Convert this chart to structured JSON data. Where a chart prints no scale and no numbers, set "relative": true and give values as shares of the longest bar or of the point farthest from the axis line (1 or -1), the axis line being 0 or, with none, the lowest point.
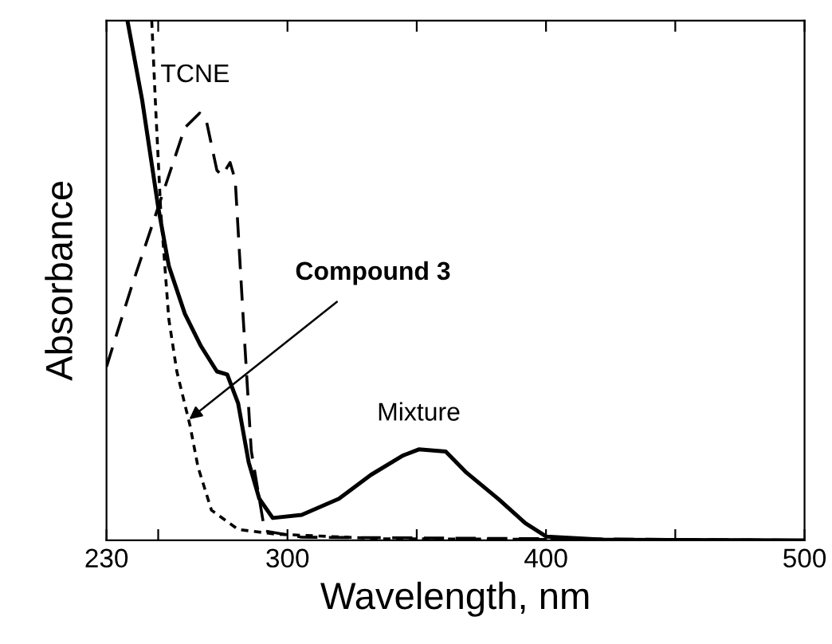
{
  "chart_data": {
    "type": "line",
    "relative": true,
    "xlabel": "Wavelength, nm",
    "ylabel": "Absorbance",
    "xlim": [
      230,
      500
    ],
    "xticks": [
      230,
      {
        "value": 250,
        "label": null
      },
      300,
      {
        "value": 350,
        "label": null
      },
      400,
      {
        "value": 450,
        "label": null
      },
      500
    ],
    "tick_labels": "x",
    "grid": false,
    "legend": false,
    "marker": "none",
    "series": [
      {
        "color": "#000000",
        "line_style": "dashed",
        "x": [
          230,
          239.7,
          250,
          260.3,
          266,
          268.5,
          272.7,
          274.7,
          277.8,
          279.8,
          282.9,
          286,
          291.2,
          305.5,
          500
        ],
        "values": [
          0.334,
          0.488,
          0.641,
          0.794,
          0.822,
          0.81,
          0.712,
          0.702,
          0.727,
          0.693,
          0.426,
          0.172,
          0.018,
          0.006,
          0
        ]
      },
      {
        "color": "#000000",
        "line_style": "dotted",
        "x": [
          247.5,
          249,
          251,
          254.1,
          257.2,
          262.3,
          265.4,
          270.6,
          280.9,
          295.2,
          336.4,
          500
        ],
        "values": [
          1.0,
          0.834,
          0.632,
          0.426,
          0.325,
          0.221,
          0.141,
          0.058,
          0.021,
          0.012,
          0.003,
          0
        ]
      },
      {
        "color": "#000000",
        "line_style": "solid",
        "x": [
          238.1,
          243.8,
          250,
          254.1,
          260.3,
          266.5,
          272.7,
          276.7,
          280.9,
          285,
          289.1,
          294.3,
          305.5,
          319.9,
          332.3,
          344.6,
          350.8,
          361.2,
          369.3,
          381.7,
          392,
          400.2,
          422.8,
          500
        ],
        "values": [
          1.0,
          0.847,
          0.641,
          0.528,
          0.436,
          0.374,
          0.325,
          0.319,
          0.264,
          0.15,
          0.08,
          0.043,
          0.049,
          0.08,
          0.126,
          0.163,
          0.175,
          0.171,
          0.13,
          0.079,
          0.033,
          0.007,
          0.001,
          0
        ]
      }
    ],
    "annotations": [
      {
        "text": "TCNE",
        "x": 266,
        "y": 0.822
      },
      {
        "text": "Compound 3",
        "x": 262,
        "y": 0.233
      },
      {
        "text": "Mixture",
        "x": 350.8,
        "y": 0.175
      }
    ]
  }
}
